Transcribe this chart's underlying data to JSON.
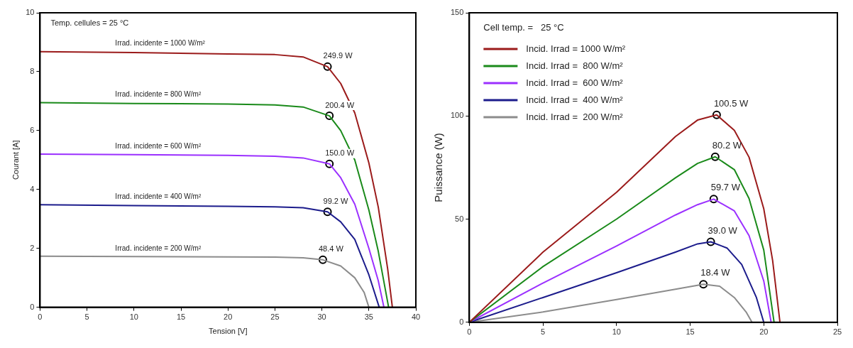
{
  "chart_data": [
    {
      "type": "line",
      "xlabel": "Tension [V]",
      "ylabel": "Courant [A]",
      "xlim": [
        0,
        40
      ],
      "ylim": [
        0,
        10
      ],
      "xticks": [
        0,
        5,
        10,
        15,
        20,
        25,
        30,
        35,
        40
      ],
      "yticks": [
        0,
        2,
        4,
        6,
        8,
        10
      ],
      "legend": false,
      "annotations": [
        "Temp. cellules = 25 °C",
        {
          "text": "249.9 W",
          "x": 30.6,
          "y": 8.17
        },
        {
          "text": "200.4 W",
          "x": 30.8,
          "y": 6.5
        },
        {
          "text": "150.0 W",
          "x": 30.8,
          "y": 4.87
        },
        {
          "text": "99.2 W",
          "x": 30.6,
          "y": 3.24
        },
        {
          "text": "48.4 W",
          "x": 30.1,
          "y": 1.61
        }
      ],
      "series": [
        {
          "name": "Irrad. incidente = 1000 W/m²",
          "color": "#9b1b1b",
          "marker": "none",
          "x": [
            0,
            10,
            20,
            25,
            28,
            30.6,
            32,
            33.5,
            35,
            36,
            37,
            37.5
          ],
          "values": [
            8.68,
            8.65,
            8.6,
            8.58,
            8.5,
            8.17,
            7.6,
            6.6,
            4.9,
            3.4,
            1.3,
            0
          ]
        },
        {
          "name": "Irrad. incidente = 800 W/m²",
          "color": "#1a8a1a",
          "marker": "none",
          "x": [
            0,
            10,
            20,
            25,
            28,
            30.8,
            32,
            33.5,
            35,
            36,
            37.1
          ],
          "values": [
            6.95,
            6.92,
            6.9,
            6.87,
            6.8,
            6.5,
            6.0,
            5.0,
            3.3,
            1.9,
            0
          ]
        },
        {
          "name": "Irrad. incidente = 600 W/m²",
          "color": "#9b30ff",
          "marker": "none",
          "x": [
            0,
            10,
            20,
            25,
            28,
            30.8,
            32,
            33.5,
            35,
            36,
            36.6
          ],
          "values": [
            5.2,
            5.18,
            5.16,
            5.13,
            5.07,
            4.87,
            4.4,
            3.5,
            2.0,
            0.9,
            0
          ]
        },
        {
          "name": "Irrad. incidente = 400 W/m²",
          "color": "#1c1c8c",
          "marker": "none",
          "x": [
            0,
            10,
            20,
            25,
            28,
            30.6,
            32,
            33.5,
            35,
            36.1
          ],
          "values": [
            3.48,
            3.45,
            3.43,
            3.41,
            3.38,
            3.24,
            2.9,
            2.3,
            1.1,
            0
          ]
        },
        {
          "name": "Irrad. incidente = 200 W/m²",
          "color": "#8c8c8c",
          "marker": "none",
          "x": [
            0,
            10,
            20,
            25,
            28,
            30.1,
            32,
            33.5,
            34.5,
            35
          ],
          "values": [
            1.73,
            1.72,
            1.71,
            1.7,
            1.68,
            1.61,
            1.4,
            1.0,
            0.5,
            0
          ]
        },
        {
          "type": "scatter",
          "color": "#000000",
          "marker": "circle",
          "x": [
            30.6,
            30.8,
            30.8,
            30.6,
            30.1
          ],
          "values": [
            8.17,
            6.5,
            4.87,
            3.24,
            1.61
          ]
        }
      ]
    },
    {
      "type": "line",
      "ylabel": "Puissance (W)",
      "xlim": [
        0,
        25
      ],
      "ylim": [
        0,
        150
      ],
      "xticks": [
        0,
        5,
        10,
        15,
        20,
        25
      ],
      "yticks": [
        0,
        50,
        100,
        150
      ],
      "legend": "top left",
      "legend_title": "Cell temp. =   25 °C",
      "series": [
        {
          "name": "Incid. Irrad = 1000 W/m²",
          "color": "#9b1b1b",
          "marker": "none",
          "x": [
            0,
            5,
            10,
            14,
            15.5,
            16.8,
            18,
            19,
            20,
            20.6,
            21.1
          ],
          "values": [
            0,
            34,
            63,
            90,
            98,
            100.5,
            93,
            80,
            55,
            30,
            0
          ]
        },
        {
          "name": "Incid. Irrad =  800 W/m²",
          "color": "#1a8a1a",
          "marker": "none",
          "x": [
            0,
            5,
            10,
            14,
            15.5,
            16.7,
            18,
            19,
            20,
            20.7
          ],
          "values": [
            0,
            27,
            50,
            70,
            77,
            80.2,
            74,
            60,
            35,
            0
          ]
        },
        {
          "name": "Incid. Irrad =  600 W/m²",
          "color": "#9b30ff",
          "marker": "none",
          "x": [
            0,
            5,
            10,
            14,
            15.5,
            16.6,
            18,
            19,
            20,
            20.5
          ],
          "values": [
            0,
            19,
            37,
            52,
            57,
            59.7,
            54,
            42,
            20,
            0
          ]
        },
        {
          "name": "Incid. Irrad =  400 W/m²",
          "color": "#1c1c8c",
          "marker": "none",
          "x": [
            0,
            5,
            10,
            14,
            15.5,
            16.4,
            17.5,
            18.5,
            19.5,
            20
          ],
          "values": [
            0,
            12,
            24,
            34,
            38,
            39,
            36,
            28,
            12,
            0
          ]
        },
        {
          "name": "Incid. Irrad =  200 W/m²",
          "color": "#8c8c8c",
          "marker": "none",
          "x": [
            0,
            5,
            10,
            14,
            15.9,
            17,
            18,
            18.8,
            19.2
          ],
          "values": [
            0,
            5,
            11,
            16,
            18.4,
            17.5,
            12,
            5,
            0
          ]
        },
        {
          "type": "scatter",
          "color": "#000000",
          "marker": "circle",
          "x": [
            16.8,
            16.7,
            16.6,
            16.4,
            15.9
          ],
          "values": [
            100.5,
            80.2,
            59.7,
            39.0,
            18.4
          ],
          "value_labels": [
            "100.5 W",
            "80.2 W",
            "59.7 W",
            "39.0 W",
            "18.4 W"
          ]
        }
      ]
    }
  ]
}
